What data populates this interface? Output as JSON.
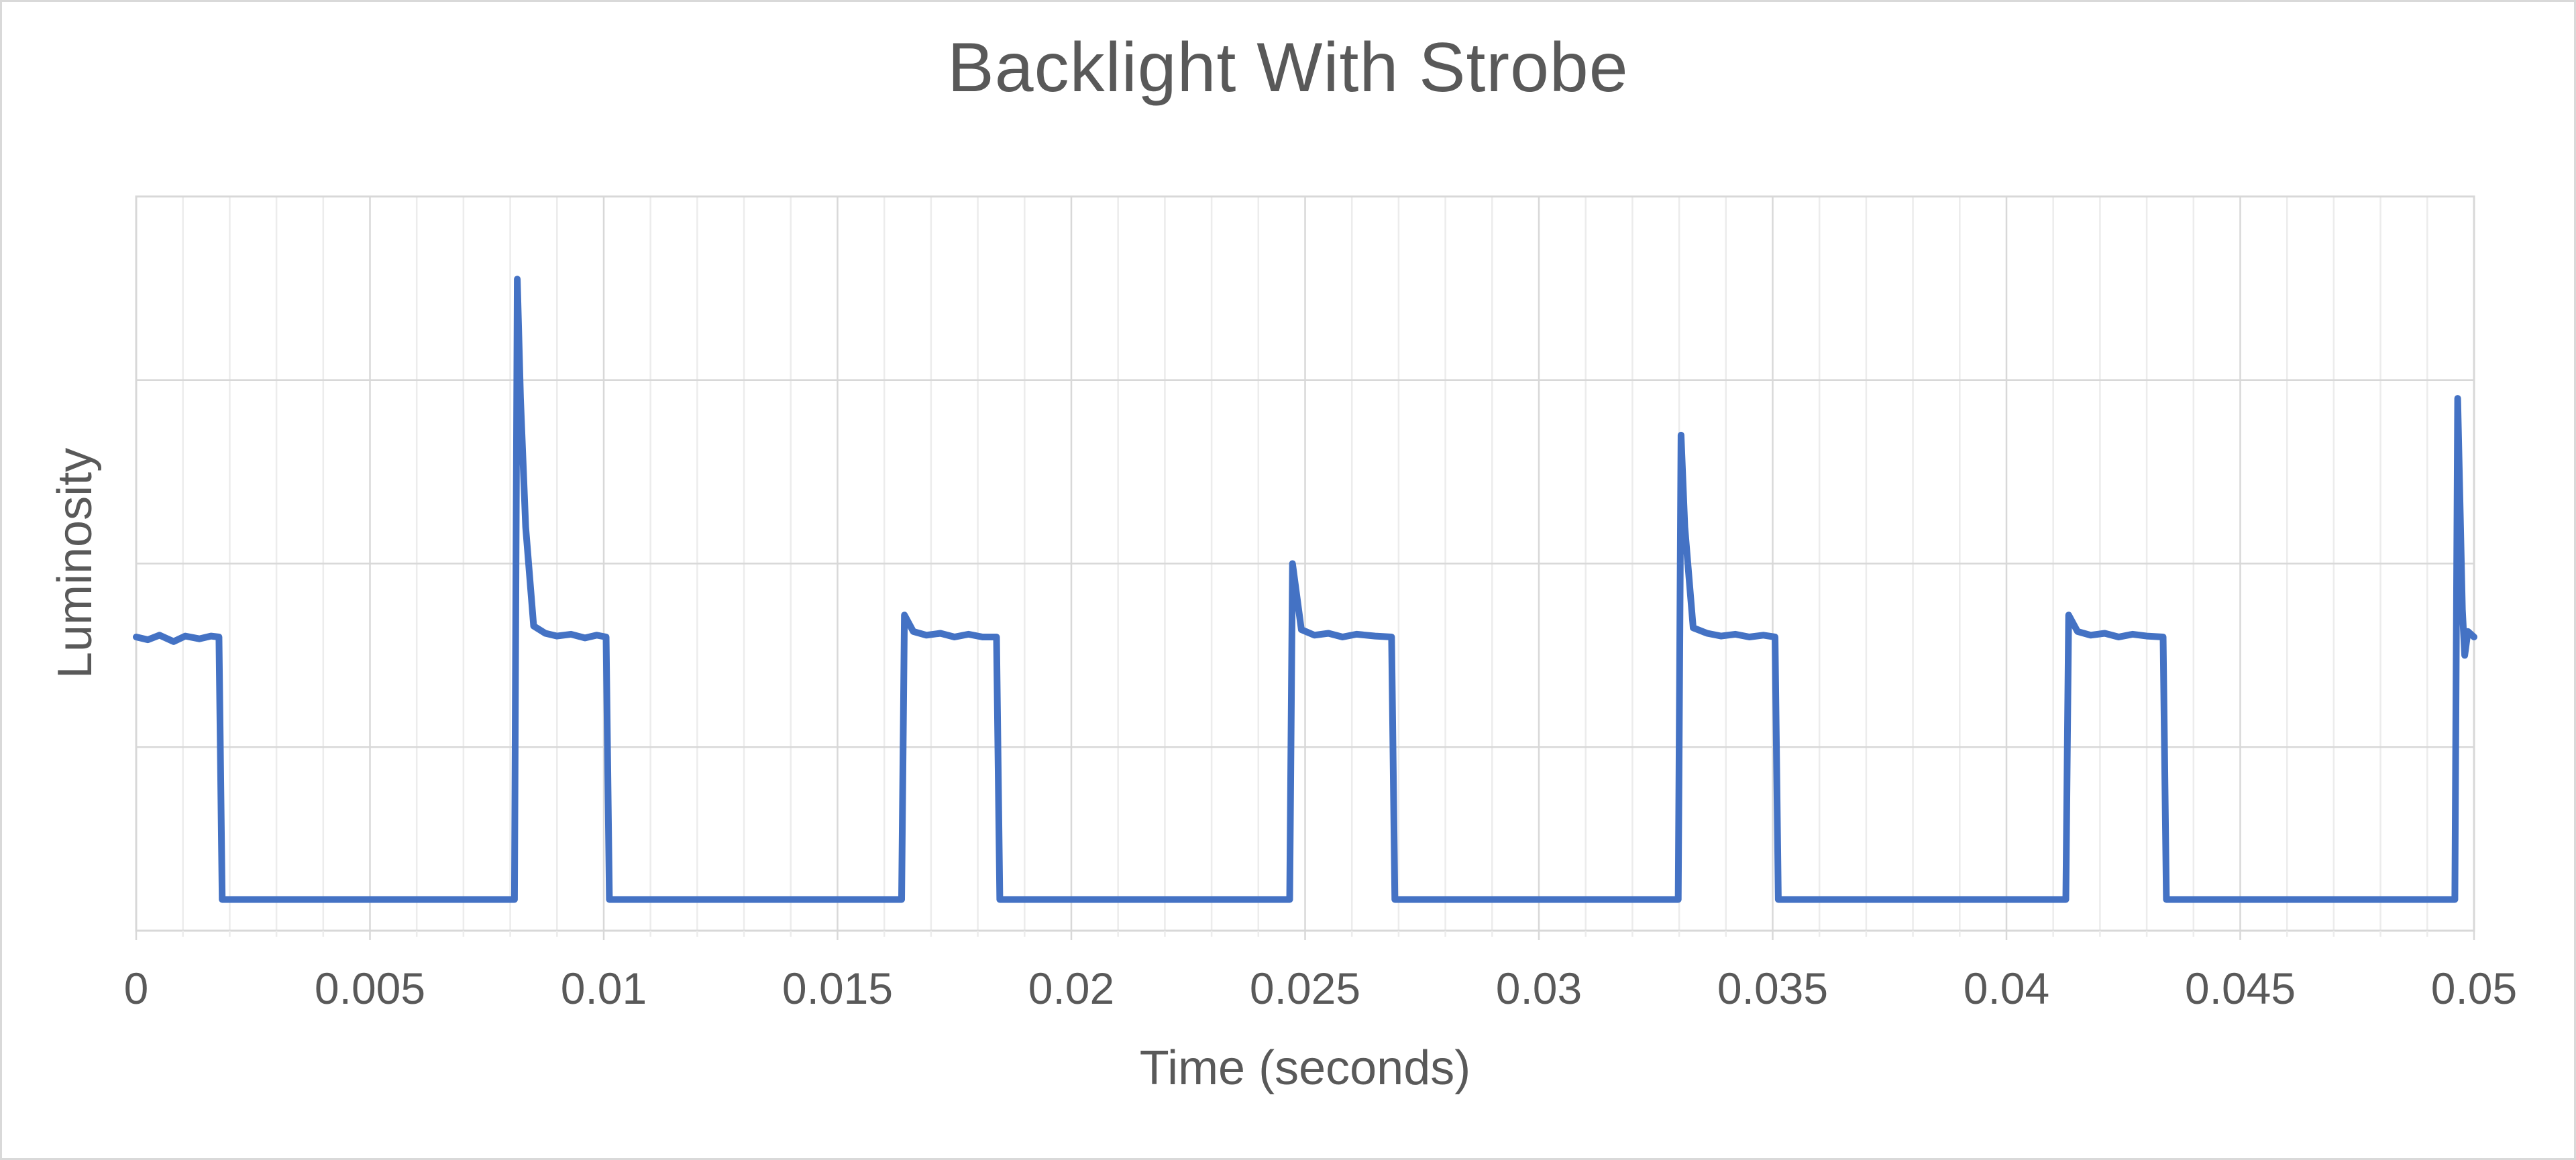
{
  "window": {
    "background": "#ffffff",
    "frame_border_color": "#d9d9d9"
  },
  "text": {
    "title": "Backlight With Strobe",
    "x_axis_title": "Time (seconds)",
    "y_axis_title": "Luminosity"
  },
  "colors": {
    "title_text": "#595959",
    "axis_text": "#595959",
    "series_line": "#4472C4",
    "gridline_major": "#d8d8d8",
    "gridline_minor": "#ececec",
    "plot_border": "#d8d8d8"
  },
  "chart_data": {
    "type": "line",
    "title": "Backlight With Strobe",
    "xlabel": "Time (seconds)",
    "ylabel": "Luminosity",
    "xlim": [
      0,
      0.05
    ],
    "ylim": [
      0,
      4
    ],
    "x_major_tick_step": 0.005,
    "x_minor_grid_step": 0.001,
    "x_tick_labels": [
      "0",
      "0.005",
      "0.01",
      "0.015",
      "0.02",
      "0.025",
      "0.03",
      "0.035",
      "0.04",
      "0.045",
      "0.05"
    ],
    "y_tick_labels": [],
    "grid": {
      "horizontal_lines_at": [
        1,
        2,
        3
      ],
      "minor_vertical": true,
      "legend": "none"
    },
    "waveform_summary": {
      "plateau_level": 1.6,
      "low_level": 0.17,
      "pulse_on_ms": 2.0,
      "period_ms": 8.25,
      "rising_edges_ms": [
        8.15,
        16.43,
        24.73,
        33.04,
        41.33,
        49.65
      ],
      "falling_edges_ms": [
        1.8,
        10.12,
        18.47,
        26.92,
        35.12,
        43.42
      ],
      "spike_peak_levels": [
        3.55,
        1.72,
        2.0,
        2.7,
        1.72,
        2.9
      ]
    },
    "series": [
      {
        "name": "Luminosity",
        "color": "#4472C4",
        "stroke_width": 10,
        "points_ms_value": [
          [
            0,
            1.6
          ],
          [
            0.25,
            1.585
          ],
          [
            0.5,
            1.61
          ],
          [
            0.8,
            1.575
          ],
          [
            1.05,
            1.605
          ],
          [
            1.35,
            1.59
          ],
          [
            1.6,
            1.605
          ],
          [
            1.77,
            1.6
          ],
          [
            1.84,
            0.17
          ],
          [
            8.09,
            0.17
          ],
          [
            8.15,
            3.55
          ],
          [
            8.22,
            2.9
          ],
          [
            8.33,
            2.2
          ],
          [
            8.5,
            1.66
          ],
          [
            8.75,
            1.62
          ],
          [
            9.0,
            1.605
          ],
          [
            9.3,
            1.615
          ],
          [
            9.6,
            1.595
          ],
          [
            9.85,
            1.61
          ],
          [
            10.05,
            1.6
          ],
          [
            10.12,
            0.17
          ],
          [
            16.37,
            0.17
          ],
          [
            16.43,
            1.72
          ],
          [
            16.62,
            1.63
          ],
          [
            16.9,
            1.61
          ],
          [
            17.2,
            1.62
          ],
          [
            17.5,
            1.6
          ],
          [
            17.8,
            1.615
          ],
          [
            18.1,
            1.6
          ],
          [
            18.4,
            1.6
          ],
          [
            18.47,
            0.17
          ],
          [
            24.67,
            0.17
          ],
          [
            24.73,
            2.0
          ],
          [
            24.92,
            1.64
          ],
          [
            25.2,
            1.61
          ],
          [
            25.5,
            1.62
          ],
          [
            25.8,
            1.6
          ],
          [
            26.1,
            1.615
          ],
          [
            26.5,
            1.605
          ],
          [
            26.85,
            1.6
          ],
          [
            26.92,
            0.17
          ],
          [
            32.98,
            0.17
          ],
          [
            33.04,
            2.7
          ],
          [
            33.12,
            2.2
          ],
          [
            33.3,
            1.65
          ],
          [
            33.6,
            1.62
          ],
          [
            33.9,
            1.605
          ],
          [
            34.2,
            1.615
          ],
          [
            34.5,
            1.6
          ],
          [
            34.8,
            1.61
          ],
          [
            35.05,
            1.6
          ],
          [
            35.12,
            0.17
          ],
          [
            41.27,
            0.17
          ],
          [
            41.33,
            1.72
          ],
          [
            41.52,
            1.63
          ],
          [
            41.8,
            1.61
          ],
          [
            42.1,
            1.62
          ],
          [
            42.4,
            1.6
          ],
          [
            42.7,
            1.615
          ],
          [
            43.0,
            1.605
          ],
          [
            43.35,
            1.6
          ],
          [
            43.42,
            0.17
          ],
          [
            49.59,
            0.17
          ],
          [
            49.65,
            2.9
          ],
          [
            49.75,
            1.75
          ],
          [
            49.8,
            1.5
          ],
          [
            49.87,
            1.63
          ],
          [
            50,
            1.6
          ]
        ]
      }
    ]
  }
}
